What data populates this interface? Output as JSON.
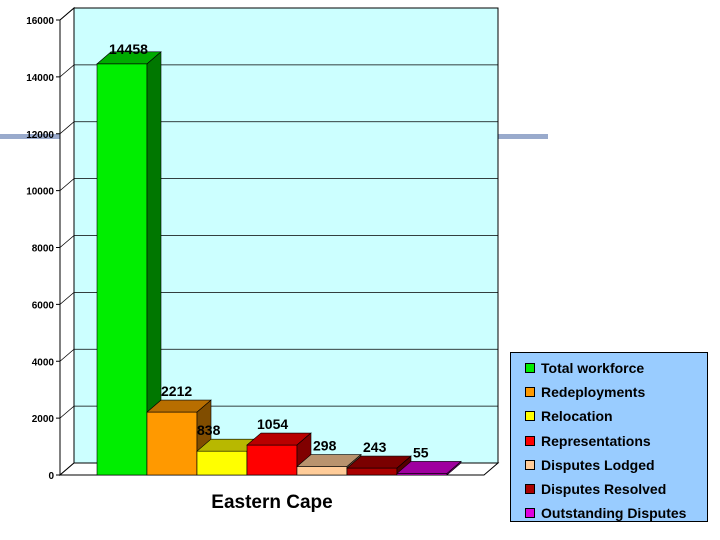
{
  "chart_data": {
    "type": "bar",
    "three_d": true,
    "xlabel": "Eastern Cape",
    "ylim": [
      0,
      16000
    ],
    "y_ticks": [
      0,
      2000,
      4000,
      6000,
      8000,
      10000,
      12000,
      14000,
      16000
    ],
    "grid": true,
    "legend_position": "bottom-right",
    "series": [
      {
        "name": "Total workforce",
        "value": 14458,
        "label": "14458",
        "color": "#00ee00"
      },
      {
        "name": "Redeployments",
        "value": 2212,
        "label": "2212",
        "color": "#ff9900"
      },
      {
        "name": "Relocation",
        "value": 838,
        "label": "838",
        "color": "#ffff00"
      },
      {
        "name": "Representations",
        "value": 1054,
        "label": "1054",
        "color": "#ff0000"
      },
      {
        "name": "Disputes Lodged",
        "value": 298,
        "label": "298",
        "color": "#ffcc99"
      },
      {
        "name": "Disputes Resolved",
        "value": 243,
        "label": "243",
        "color": "#aa0000"
      },
      {
        "name": "Outstanding Disputes",
        "value": 55,
        "label": "55",
        "color": "#dd00dd"
      }
    ],
    "plot_background": "#ccffff"
  }
}
